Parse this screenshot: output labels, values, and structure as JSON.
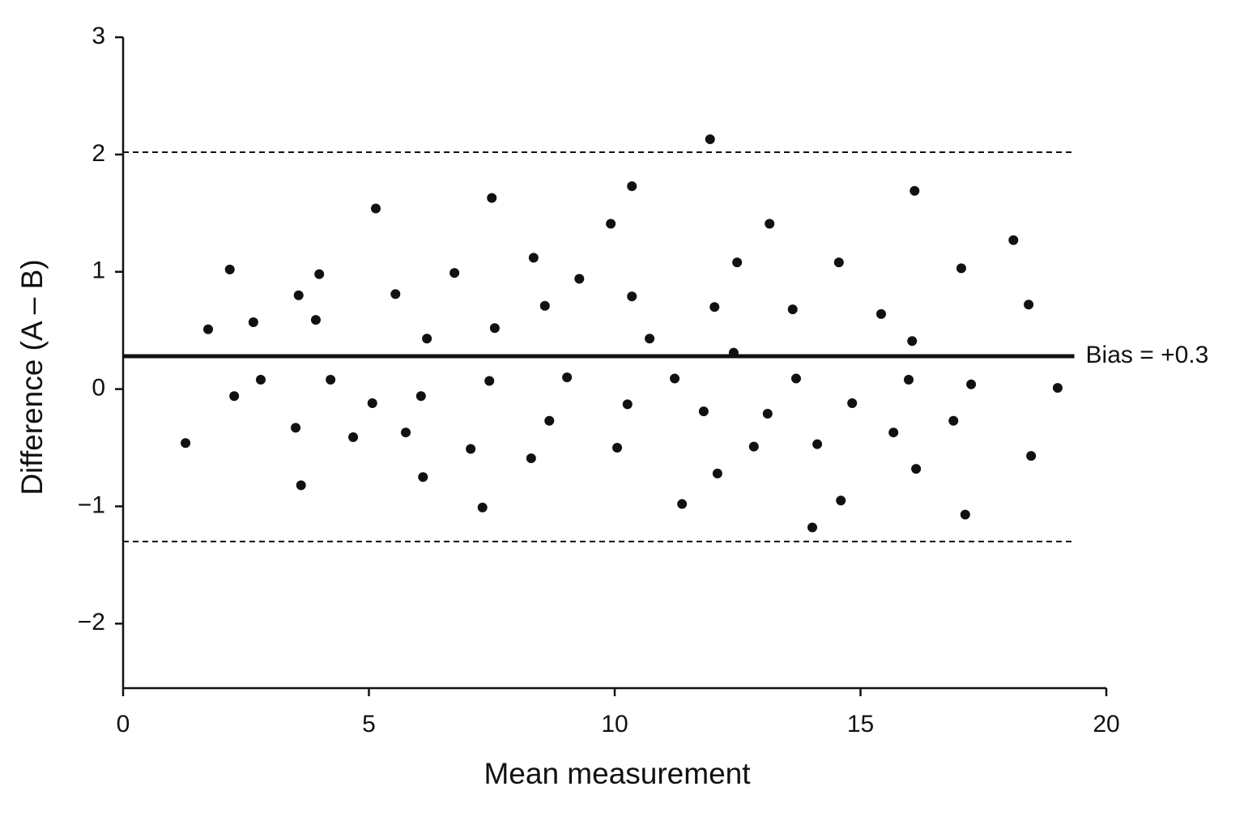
{
  "chart_data": {
    "type": "scatter",
    "x_label": "Mean measurement",
    "y_label": "Difference (A – B)",
    "xlim": [
      0,
      20
    ],
    "xticks": [
      0,
      5,
      10,
      15,
      20
    ],
    "ylim": [
      -2.55,
      3
    ],
    "yticks": [
      {
        "value": -2,
        "label": "−2"
      },
      {
        "value": -1,
        "label": "−1"
      },
      0,
      1,
      2,
      3
    ],
    "color": "#111111",
    "ref_line_xmax": 19.35,
    "bias": 0.28,
    "upper_limit": 2.02,
    "lower_limit": -1.3,
    "annotation": "Bias = +0.3",
    "x": [
      1.27,
      1.73,
      2.17,
      2.26,
      2.65,
      2.8,
      3.51,
      3.57,
      3.62,
      3.92,
      3.99,
      4.22,
      4.68,
      5.07,
      5.14,
      5.54,
      5.75,
      6.06,
      6.1,
      6.18,
      6.74,
      7.07,
      7.31,
      7.45,
      7.5,
      7.56,
      8.3,
      8.35,
      8.58,
      8.67,
      9.03,
      9.28,
      9.92,
      10.05,
      10.26,
      10.35,
      10.35,
      10.71,
      11.22,
      11.37,
      11.81,
      11.94,
      12.03,
      12.09,
      12.42,
      12.49,
      12.83,
      13.11,
      13.15,
      13.62,
      13.69,
      14.02,
      14.12,
      14.56,
      14.6,
      14.83,
      15.42,
      15.67,
      15.98,
      16.05,
      16.1,
      16.13,
      16.89,
      17.05,
      17.13,
      17.25,
      18.11,
      18.42,
      18.47,
      19.01
    ],
    "values": [
      -0.46,
      0.51,
      1.02,
      -0.06,
      0.57,
      0.08,
      -0.33,
      0.8,
      -0.82,
      0.59,
      0.98,
      0.08,
      -0.41,
      -0.12,
      1.54,
      0.81,
      -0.37,
      -0.06,
      -0.75,
      0.43,
      0.99,
      -0.51,
      -1.01,
      0.07,
      1.63,
      0.52,
      -0.59,
      1.12,
      0.71,
      -0.27,
      0.1,
      0.94,
      1.41,
      -0.5,
      -0.13,
      1.73,
      0.79,
      0.43,
      0.09,
      -0.98,
      -0.19,
      2.13,
      0.7,
      -0.72,
      0.31,
      1.08,
      -0.49,
      -0.21,
      1.41,
      0.68,
      0.09,
      -1.18,
      -0.47,
      1.08,
      -0.95,
      -0.12,
      0.64,
      -0.37,
      0.08,
      0.41,
      1.69,
      -0.68,
      -0.27,
      1.03,
      -1.07,
      0.04,
      1.27,
      0.72,
      -0.57,
      0.01
    ]
  }
}
